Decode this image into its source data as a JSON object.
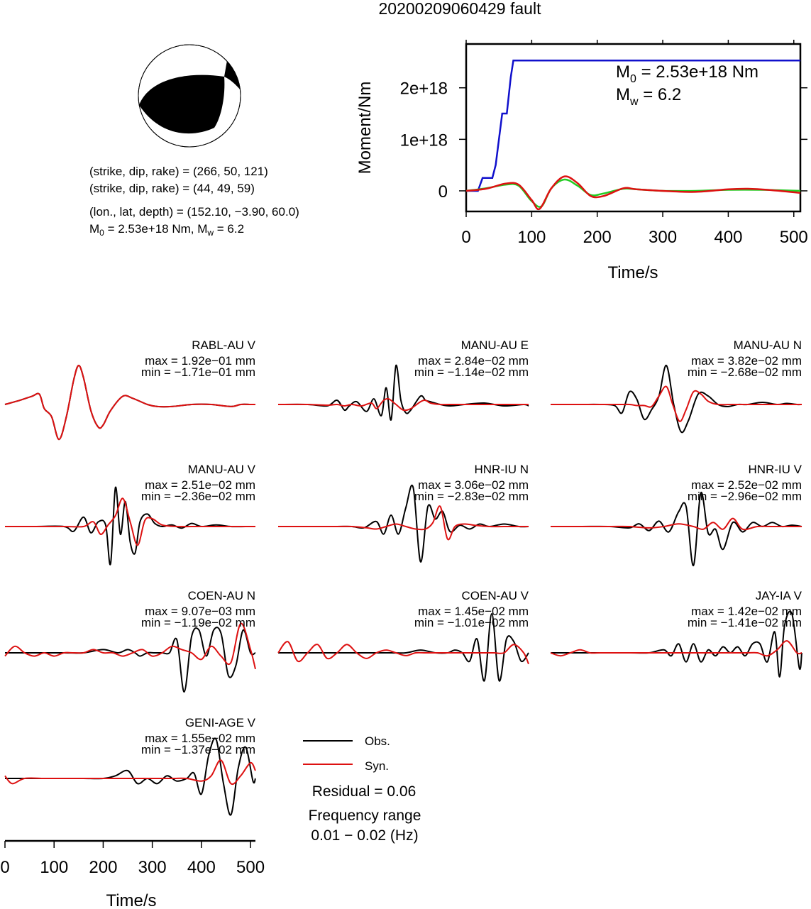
{
  "title": "20200209060429 fault",
  "focal": {
    "np1": "(strike, dip, rake) = (266, 50, 121)",
    "np2": "(strike, dip, rake) = (44, 49, 59)",
    "loc": "(lon., lat, depth) = (152.10, −3.90, 60.0)",
    "m0_pre": "M",
    "m0_sub": "0",
    "m0_mid": " = 2.53e+18 Nm, M",
    "mw_sub": "w",
    "mw_post": " = 6.2"
  },
  "moment_plot": {
    "ylabel": "Moment/Nm",
    "xlabel": "Time/s",
    "xticks": [
      "0",
      "100",
      "200",
      "300",
      "400",
      "500"
    ],
    "yticks": [
      "0",
      "1e+18",
      "2e+18"
    ],
    "ann_m0_pre": "M",
    "ann_m0_sub": "0",
    "ann_m0_post": " = 2.53e+18 Nm",
    "ann_mw_pre": "M",
    "ann_mw_sub": "w",
    "ann_mw_post": " = 6.2"
  },
  "wave_xaxis": {
    "xlabel": "Time/s",
    "xticks": [
      "0",
      "100",
      "200",
      "300",
      "400",
      "500"
    ]
  },
  "legend": {
    "obs": "Obs.",
    "syn": "Syn.",
    "residual": "Residual = 0.06",
    "freq_label": "Frequency range",
    "freq_value": "0.01 − 0.02 (Hz)"
  },
  "colors": {
    "observed": "#000000",
    "synthetic": "#dd1111",
    "cumulative": "#1010cc",
    "moment_rate_green": "#22cc22",
    "moment_rate_red": "#dd1111"
  },
  "chart_data": [
    {
      "type": "line",
      "title": "",
      "xlabel": "Time/s",
      "ylabel": "Moment/Nm",
      "xlim": [
        0,
        510
      ],
      "ylim": [
        -4e+17,
        2.85e+18
      ],
      "series": [
        {
          "name": "",
          "color": "#1010cc",
          "x": [
            0,
            18,
            25,
            40,
            45,
            55,
            62,
            68,
            72,
            510
          ],
          "y": [
            0,
            0,
            2.5e+17,
            2.5e+17,
            5e+17,
            1.5e+18,
            1.5e+18,
            2.2e+18,
            2.53e+18,
            2.53e+18
          ]
        },
        {
          "name": "",
          "color": "#22cc22",
          "x": [
            0,
            30,
            60,
            80,
            100,
            115,
            130,
            150,
            170,
            190,
            210,
            240,
            260,
            300,
            350,
            400,
            450,
            510
          ],
          "y": [
            0,
            5e+16,
            1.2e+17,
            1e+17,
            -2e+17,
            -3e+17,
            5e+16,
            2.2e+17,
            1e+17,
            -8e+16,
            -5e+16,
            4e+16,
            3e+16,
            0.0,
            0.0,
            2e+16,
            2e+16,
            0.0
          ]
        },
        {
          "name": "",
          "color": "#dd1111",
          "x": [
            0,
            30,
            60,
            80,
            100,
            112,
            130,
            150,
            170,
            190,
            210,
            240,
            260,
            300,
            350,
            400,
            430,
            460,
            510
          ],
          "y": [
            0,
            4e+16,
            1.4e+17,
            1.2e+17,
            -1.8e+17,
            -3.5e+17,
            5e+16,
            2.8e+17,
            1.5e+17,
            -1e+17,
            -1e+17,
            5e+16,
            3e+16,
            0.0,
            -2e+16,
            3e+16,
            4e+16,
            2e+16,
            -4e+16
          ]
        }
      ]
    },
    {
      "type": "line",
      "station": "RABL-AU V",
      "max": "max = 1.92e−01 mm",
      "min": "min = −1.71e−01 mm",
      "xlim": [
        0,
        510
      ],
      "obs_x": [
        0,
        30,
        55,
        70,
        80,
        95,
        110,
        125,
        140,
        150,
        160,
        175,
        190,
        200,
        215,
        240,
        260,
        290,
        310,
        340,
        380,
        420,
        460,
        480,
        500,
        510
      ],
      "obs_y": [
        0.0,
        0.02,
        0.04,
        0.05,
        -0.02,
        -0.06,
        -0.17,
        -0.06,
        0.12,
        0.19,
        0.13,
        -0.03,
        -0.11,
        -0.1,
        -0.03,
        0.04,
        0.03,
        0.0,
        -0.01,
        -0.01,
        0.0,
        0.0,
        -0.01,
        0.0,
        0.0,
        0.0
      ],
      "syn_x": [
        0,
        30,
        55,
        70,
        80,
        95,
        110,
        125,
        140,
        150,
        160,
        175,
        190,
        200,
        215,
        240,
        260,
        290,
        310,
        340,
        380,
        420,
        460,
        480,
        500,
        510
      ],
      "syn_y": [
        0.0,
        0.02,
        0.04,
        0.05,
        -0.02,
        -0.06,
        -0.17,
        -0.06,
        0.12,
        0.19,
        0.13,
        -0.03,
        -0.11,
        -0.1,
        -0.03,
        0.04,
        0.03,
        0.0,
        -0.01,
        -0.01,
        0.0,
        0.0,
        -0.01,
        0.0,
        0.0,
        0.0
      ]
    },
    {
      "type": "line",
      "station": "MANU-AU E",
      "max": "max = 2.84e−02 mm",
      "min": "min = −1.14e−02 mm",
      "xlim": [
        0,
        510
      ],
      "obs_x": [
        0,
        60,
        100,
        120,
        135,
        145,
        160,
        180,
        195,
        210,
        220,
        230,
        240,
        250,
        260,
        270,
        290,
        300,
        310,
        330,
        350,
        380,
        420,
        460,
        500,
        510
      ],
      "obs_y": [
        0.0,
        0.0,
        -0.001,
        0.003,
        -0.004,
        -0.001,
        0.002,
        -0.005,
        0.004,
        -0.008,
        0.012,
        -0.011,
        0.028,
        0.003,
        -0.006,
        -0.004,
        0.006,
        0.003,
        0.002,
        0.0,
        -0.001,
        0.0,
        0.001,
        -0.001,
        0.0,
        -0.001
      ],
      "syn_x": [
        0,
        60,
        100,
        120,
        135,
        150,
        170,
        190,
        200,
        210,
        215,
        225,
        240,
        255,
        270,
        290,
        300,
        310,
        330,
        350,
        380,
        420,
        460,
        500,
        510
      ],
      "syn_y": [
        0.0,
        0.0,
        -0.0005,
        0.0,
        -0.001,
        0.0,
        -0.001,
        0.001,
        -0.003,
        0.001,
        0.003,
        0.004,
        0.0,
        -0.004,
        -0.003,
        0.002,
        0.003,
        0.001,
        0.0,
        0.0,
        0.0,
        0.0,
        0.0,
        0.0,
        0.0
      ]
    },
    {
      "type": "line",
      "station": "MANU-AU N",
      "max": "max = 3.82e−02 mm",
      "min": "min = −2.68e−02 mm",
      "xlim": [
        0,
        510
      ],
      "obs_x": [
        0,
        60,
        100,
        130,
        145,
        160,
        175,
        190,
        205,
        220,
        235,
        250,
        265,
        280,
        300,
        320,
        340,
        360,
        380,
        400,
        430,
        460,
        480,
        500,
        510
      ],
      "obs_y": [
        0.0,
        0.0,
        0.0,
        -0.001,
        -0.008,
        0.012,
        0.005,
        -0.014,
        -0.005,
        0.008,
        0.037,
        0.0,
        -0.026,
        -0.015,
        0.01,
        0.008,
        0.0,
        -0.002,
        0.0,
        0.0,
        0.002,
        0.0,
        0.001,
        0.0,
        0.0
      ],
      "syn_x": [
        0,
        60,
        100,
        140,
        160,
        175,
        190,
        205,
        220,
        235,
        248,
        262,
        275,
        290,
        305,
        320,
        340,
        370,
        400,
        440,
        480,
        510
      ],
      "syn_y": [
        0.0,
        0.0,
        0.0,
        0.0,
        0.0,
        -0.001,
        -0.001,
        -0.002,
        0.008,
        0.017,
        0.0,
        -0.016,
        -0.005,
        0.012,
        0.01,
        0.003,
        0.0,
        0.0,
        0.0,
        0.0,
        0.0,
        0.0
      ]
    },
    {
      "type": "line",
      "station": "MANU-AU V",
      "max": "max = 2.51e−02 mm",
      "min": "min = −2.36e−02 mm",
      "xlim": [
        0,
        510
      ],
      "obs_x": [
        0,
        60,
        120,
        140,
        160,
        175,
        190,
        205,
        215,
        225,
        235,
        245,
        255,
        265,
        275,
        290,
        305,
        320,
        340,
        360,
        380,
        400,
        430,
        460,
        490,
        510
      ],
      "obs_y": [
        0.0,
        0.0,
        0.0,
        -0.003,
        0.006,
        -0.004,
        0.003,
        0.001,
        -0.024,
        0.025,
        -0.005,
        0.016,
        -0.01,
        -0.017,
        0.003,
        0.008,
        0.002,
        0.0,
        0.001,
        -0.001,
        0.002,
        0.0,
        0.001,
        0.0,
        0.0,
        0.0
      ],
      "syn_x": [
        0,
        60,
        120,
        160,
        180,
        195,
        210,
        225,
        240,
        255,
        270,
        285,
        300,
        320,
        350,
        380,
        420,
        460,
        500,
        510
      ],
      "syn_y": [
        0.0,
        0.0,
        0.0,
        0.0,
        0.003,
        -0.005,
        0.001,
        0.007,
        0.018,
        0.003,
        -0.012,
        0.004,
        0.005,
        0.001,
        0.0,
        0.0,
        0.0,
        0.0,
        0.0,
        0.0
      ]
    },
    {
      "type": "line",
      "station": "HNR-IU N",
      "max": "max = 3.06e−02 mm",
      "min": "min = −2.83e−02 mm",
      "xlim": [
        0,
        510
      ],
      "obs_x": [
        0,
        60,
        120,
        150,
        175,
        200,
        215,
        230,
        245,
        260,
        275,
        290,
        305,
        320,
        335,
        350,
        370,
        390,
        410,
        430,
        460,
        490,
        510
      ],
      "obs_y": [
        0.0,
        0.0,
        0.0,
        0.0,
        -0.001,
        0.004,
        -0.006,
        0.009,
        -0.006,
        0.015,
        0.031,
        -0.028,
        0.016,
        0.006,
        0.012,
        -0.004,
        0.001,
        -0.002,
        0.002,
        0.0,
        0.002,
        0.0,
        0.0
      ],
      "syn_x": [
        0,
        60,
        120,
        150,
        180,
        200,
        220,
        240,
        260,
        280,
        300,
        315,
        330,
        345,
        360,
        380,
        400,
        430,
        460,
        500,
        510
      ],
      "syn_y": [
        0.0,
        0.0,
        0.0,
        0.0,
        -0.001,
        -0.002,
        0.0,
        0.002,
        0.0,
        -0.002,
        -0.002,
        0.003,
        0.016,
        -0.01,
        0.0,
        0.002,
        0.001,
        0.0,
        0.0,
        0.0,
        0.0
      ]
    },
    {
      "type": "line",
      "station": "HNR-IU V",
      "max": "max = 2.52e−02 mm",
      "min": "min = −2.96e−02 mm",
      "xlim": [
        0,
        510
      ],
      "obs_x": [
        0,
        60,
        120,
        160,
        180,
        200,
        220,
        240,
        260,
        275,
        290,
        305,
        320,
        335,
        350,
        370,
        390,
        410,
        430,
        450,
        470,
        490,
        510
      ],
      "obs_y": [
        0.0,
        0.0,
        0.0,
        -0.001,
        0.002,
        -0.003,
        0.004,
        -0.004,
        0.011,
        0.015,
        -0.029,
        0.025,
        -0.005,
        -0.002,
        -0.017,
        0.003,
        -0.004,
        0.003,
        0.0,
        0.003,
        0.0,
        0.001,
        0.0
      ],
      "syn_x": [
        0,
        60,
        120,
        160,
        200,
        230,
        260,
        290,
        310,
        330,
        350,
        370,
        390,
        420,
        450,
        480,
        510
      ],
      "syn_y": [
        0.0,
        0.0,
        0.0,
        0.0,
        -0.001,
        0.0,
        0.002,
        0.0,
        -0.002,
        0.003,
        -0.002,
        0.006,
        -0.002,
        0.0,
        0.0,
        0.0,
        0.0
      ]
    },
    {
      "type": "line",
      "station": "COEN-AU N",
      "max": "max = 9.07e−03 mm",
      "min": "min = −1.19e−02 mm",
      "xlim": [
        0,
        510
      ],
      "obs_x": [
        0,
        40,
        80,
        120,
        160,
        200,
        230,
        250,
        265,
        275,
        290,
        305,
        320,
        335,
        350,
        365,
        380,
        395,
        410,
        425,
        440,
        455,
        470,
        485,
        500,
        510
      ],
      "obs_y": [
        0.0,
        0.0,
        0.0,
        0.0,
        0.0,
        0.001,
        0.0,
        0.001,
        0.0,
        -0.001,
        0.0,
        0.0,
        0.0,
        0.0,
        0.004,
        -0.012,
        0.005,
        0.007,
        -0.001,
        0.007,
        0.006,
        -0.007,
        -0.004,
        0.007,
        0.0,
        0.0
      ],
      "syn_x": [
        0,
        20,
        40,
        60,
        80,
        100,
        120,
        140,
        160,
        180,
        200,
        220,
        240,
        260,
        280,
        300,
        320,
        340,
        360,
        380,
        400,
        420,
        440,
        460,
        480,
        500,
        510
      ],
      "syn_y": [
        -0.001,
        0.002,
        0.0,
        -0.001,
        0.0,
        -0.001,
        0.0,
        0.0,
        0.0,
        0.001,
        0.0,
        0.0,
        -0.001,
        0.0,
        0.001,
        -0.001,
        0.0,
        0.002,
        0.001,
        0.0,
        -0.002,
        0.002,
        -0.001,
        -0.003,
        0.009,
        0.001,
        -0.005
      ]
    },
    {
      "type": "line",
      "station": "COEN-AU V",
      "max": "max = 1.45e−02 mm",
      "min": "min = −1.01e−02 mm",
      "xlim": [
        0,
        510
      ],
      "obs_x": [
        0,
        60,
        120,
        180,
        230,
        260,
        290,
        320,
        345,
        360,
        375,
        390,
        405,
        420,
        435,
        450,
        465,
        480,
        495,
        510
      ],
      "obs_y": [
        0.0,
        0.0,
        0.0,
        0.0,
        0.0,
        0.0,
        0.001,
        0.0,
        0.0,
        0.001,
        0.0,
        -0.003,
        0.005,
        -0.01,
        0.014,
        -0.01,
        0.005,
        0.004,
        -0.003,
        0.0
      ],
      "syn_x": [
        0,
        20,
        40,
        60,
        80,
        100,
        120,
        140,
        160,
        180,
        200,
        220,
        240,
        260,
        280,
        300,
        320,
        340,
        360,
        380,
        400,
        420,
        440,
        460,
        480,
        500,
        510
      ],
      "syn_y": [
        0.0,
        0.004,
        -0.003,
        0.0,
        0.003,
        -0.002,
        0.0,
        0.003,
        0.0,
        -0.002,
        0.0,
        0.001,
        0.0,
        -0.001,
        0.0,
        0.0,
        0.0,
        0.0,
        0.0,
        0.0,
        0.0,
        0.0,
        0.0,
        0.0,
        0.003,
        0.0,
        -0.004
      ]
    },
    {
      "type": "line",
      "station": "JAY-IA V",
      "max": "max = 1.42e−02 mm",
      "min": "min = −1.41e−02 mm",
      "xlim": [
        0,
        510
      ],
      "obs_x": [
        0,
        40,
        80,
        120,
        160,
        200,
        230,
        245,
        260,
        275,
        290,
        305,
        320,
        335,
        350,
        365,
        380,
        395,
        410,
        425,
        440,
        455,
        465,
        475,
        490,
        505,
        510
      ],
      "obs_y": [
        0.0,
        0.0,
        0.0,
        0.0,
        0.0,
        0.0,
        0.001,
        -0.001,
        0.003,
        -0.003,
        0.003,
        -0.003,
        0.001,
        -0.001,
        0.002,
        0.0,
        0.002,
        -0.001,
        0.003,
        0.003,
        -0.003,
        0.007,
        -0.008,
        0.009,
        0.013,
        -0.005,
        0.0
      ],
      "syn_x": [
        0,
        20,
        40,
        60,
        80,
        100,
        120,
        140,
        160,
        180,
        200,
        220,
        240,
        260,
        280,
        300,
        320,
        340,
        360,
        380,
        400,
        420,
        440,
        460,
        480,
        500,
        510
      ],
      "syn_y": [
        0.0,
        -0.001,
        0.0,
        0.001,
        0.0,
        0.0,
        0.0,
        0.0,
        0.0,
        0.0,
        0.0,
        0.0,
        0.0,
        0.0,
        0.0,
        0.0,
        0.0,
        0.0,
        0.0,
        0.0,
        0.0,
        0.0,
        -0.001,
        0.001,
        0.004,
        0.0,
        0.0
      ]
    },
    {
      "type": "line",
      "station": "GENI-AGE V",
      "max": "max = 1.55e−02 mm",
      "min": "min = −1.37e−02 mm",
      "xlim": [
        0,
        510
      ],
      "obs_x": [
        0,
        40,
        80,
        120,
        160,
        200,
        225,
        250,
        270,
        290,
        310,
        330,
        350,
        370,
        385,
        400,
        415,
        430,
        445,
        460,
        475,
        490,
        505,
        510
      ],
      "obs_y": [
        0.0,
        0.0,
        0.0,
        0.0,
        0.0,
        0.0,
        0.001,
        0.003,
        -0.002,
        0.0,
        -0.002,
        0.001,
        -0.001,
        0.0,
        0.002,
        -0.006,
        0.009,
        0.015,
        -0.002,
        -0.014,
        0.004,
        0.012,
        -0.001,
        0.0
      ],
      "syn_x": [
        0,
        15,
        40,
        80,
        120,
        160,
        200,
        230,
        260,
        300,
        340,
        370,
        400,
        420,
        440,
        460,
        480,
        500,
        510
      ],
      "syn_y": [
        0.001,
        -0.002,
        0.0,
        0.0,
        0.0,
        0.0,
        0.0,
        0.0,
        0.0,
        0.0,
        0.0,
        0.0,
        -0.001,
        0.001,
        0.007,
        -0.002,
        0.001,
        0.006,
        0.003
      ]
    }
  ]
}
